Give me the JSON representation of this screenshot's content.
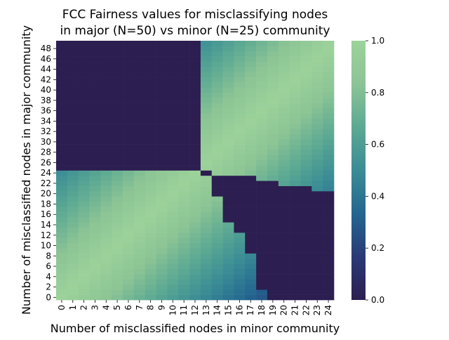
{
  "chart_data": {
    "type": "heatmap",
    "title": "FCC Fairness values for misclassifying nodes\nin major (N=50) vs minor (N=25) community",
    "xlabel": "Number of misclassified nodes in minor community",
    "ylabel": "Number of misclassified nodes in major community",
    "x_count": 25,
    "y_count": 50,
    "xticks": [
      "0",
      "1",
      "2",
      "3",
      "4",
      "5",
      "6",
      "7",
      "8",
      "9",
      "10",
      "11",
      "12",
      "13",
      "14",
      "15",
      "16",
      "17",
      "18",
      "19",
      "20",
      "21",
      "22",
      "23",
      "24"
    ],
    "yticks": [
      "0",
      "2",
      "4",
      "6",
      "8",
      "10",
      "12",
      "14",
      "16",
      "18",
      "20",
      "22",
      "24",
      "26",
      "28",
      "30",
      "32",
      "34",
      "36",
      "38",
      "40",
      "42",
      "44",
      "46",
      "48"
    ],
    "colorbar": {
      "min": 0.0,
      "max": 1.0,
      "ticks": [
        "0.0",
        "0.2",
        "0.4",
        "0.6",
        "0.8",
        "1.0"
      ]
    },
    "colormap": [
      "#2c1e50",
      "#2a3a76",
      "#246690",
      "#3a8c95",
      "#5ca993",
      "#8cc495",
      "#9cd29a"
    ],
    "value_rule": "1 - |x/25 - y/50| off the dark bands; 0 in the dark top-left and bottom-right regions",
    "zero_region_top_left": [
      {
        "x_max": 6,
        "y_from": 49
      },
      {
        "x_max": 7,
        "y_from": 45
      },
      {
        "x_max": 8,
        "y_from": 39
      },
      {
        "x_max": 9,
        "y_from": 35
      },
      {
        "x_max": 10,
        "y_from": 30
      },
      {
        "x_max": 11,
        "y_from": 28
      },
      {
        "x_max": 12,
        "y_from": 25
      }
    ],
    "zero_start_top_left": [
      30,
      30,
      30,
      29,
      29,
      28,
      28,
      28,
      27,
      27,
      27,
      26,
      26
    ],
    "zero_end_bottom_right": [
      -1,
      -1,
      -1,
      -1,
      -1,
      -1,
      -1,
      -1,
      -1,
      -1,
      -1,
      -1,
      -1,
      24,
      20,
      15,
      13,
      9,
      2,
      0,
      0,
      0,
      0,
      0,
      0
    ],
    "zero_top_bottom_right": [
      -1,
      -1,
      -1,
      -1,
      -1,
      -1,
      -1,
      -1,
      -1,
      -1,
      -1,
      -1,
      -1,
      24,
      23,
      23,
      23,
      23,
      22,
      22,
      21,
      21,
      21,
      20,
      20
    ]
  }
}
